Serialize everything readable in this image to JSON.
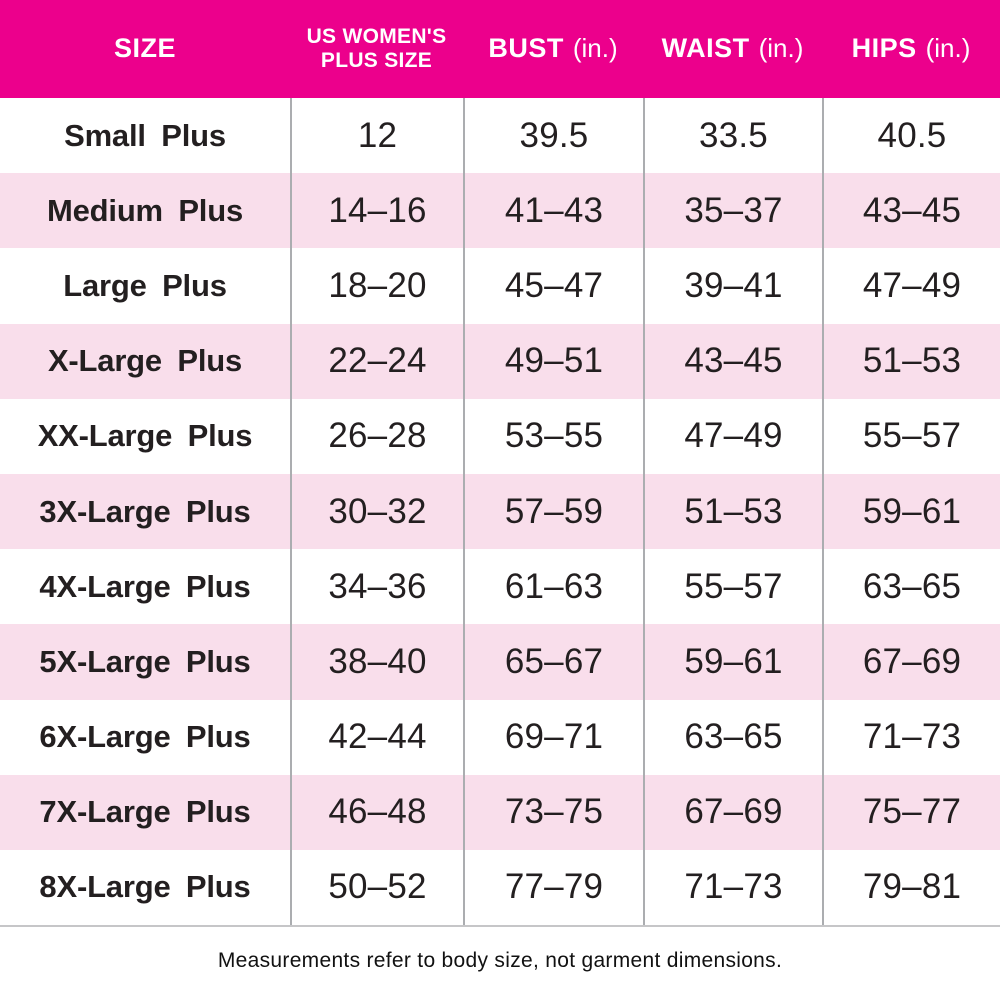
{
  "header": {
    "columns": [
      {
        "label": "SIZE"
      },
      {
        "label_line1": "US WOMEN'S",
        "label_line2": "PLUS SIZE"
      },
      {
        "label": "BUST",
        "unit": "(in.)"
      },
      {
        "label": "WAIST",
        "unit": "(in.)"
      },
      {
        "label": "HIPS",
        "unit": "(in.)"
      }
    ]
  },
  "rows": [
    {
      "size": "Small Plus",
      "us_plus_size": "12",
      "bust": "39.5",
      "waist": "33.5",
      "hips": "40.5"
    },
    {
      "size": "Medium Plus",
      "us_plus_size": "14–16",
      "bust": "41–43",
      "waist": "35–37",
      "hips": "43–45"
    },
    {
      "size": "Large Plus",
      "us_plus_size": "18–20",
      "bust": "45–47",
      "waist": "39–41",
      "hips": "47–49"
    },
    {
      "size": "X-Large Plus",
      "us_plus_size": "22–24",
      "bust": "49–51",
      "waist": "43–45",
      "hips": "51–53"
    },
    {
      "size": "XX-Large Plus",
      "us_plus_size": "26–28",
      "bust": "53–55",
      "waist": "47–49",
      "hips": "55–57"
    },
    {
      "size": "3X-Large Plus",
      "us_plus_size": "30–32",
      "bust": "57–59",
      "waist": "51–53",
      "hips": "59–61"
    },
    {
      "size": "4X-Large Plus",
      "us_plus_size": "34–36",
      "bust": "61–63",
      "waist": "55–57",
      "hips": "63–65"
    },
    {
      "size": "5X-Large Plus",
      "us_plus_size": "38–40",
      "bust": "65–67",
      "waist": "59–61",
      "hips": "67–69"
    },
    {
      "size": "6X-Large Plus",
      "us_plus_size": "42–44",
      "bust": "69–71",
      "waist": "63–65",
      "hips": "71–73"
    },
    {
      "size": "7X-Large Plus",
      "us_plus_size": "46–48",
      "bust": "73–75",
      "waist": "67–69",
      "hips": "75–77"
    },
    {
      "size": "8X-Large Plus",
      "us_plus_size": "50–52",
      "bust": "77–79",
      "waist": "71–73",
      "hips": "79–81"
    }
  ],
  "footer": {
    "note": "Measurements refer to body size, not garment dimensions."
  },
  "colors": {
    "header_bg": "#EC008C",
    "header_text": "#FFFFFF",
    "alt_row_bg": "#F9DEEB",
    "grid_line": "#ABADB0",
    "body_text": "#231F20"
  }
}
